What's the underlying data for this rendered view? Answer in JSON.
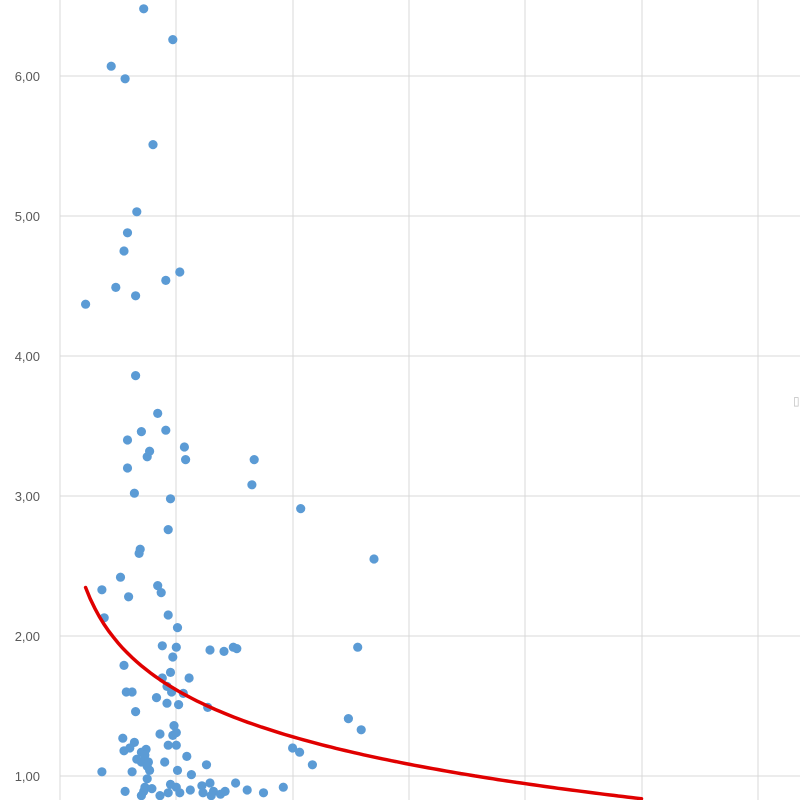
{
  "chart_data": {
    "type": "scatter",
    "title": "",
    "xlabel": "",
    "ylabel": "",
    "xlim": [
      0,
      6.3
    ],
    "ylim": [
      0.85,
      6.58
    ],
    "yticks": [
      1.0,
      2.0,
      3.0,
      4.0,
      5.0,
      6.0
    ],
    "ytick_labels": [
      "1,00",
      "2,00",
      "3,00",
      "4,00",
      "5,00",
      "6,00"
    ],
    "xticks": [
      0.5,
      1.5,
      2.5,
      3.5,
      4.5,
      5.5
    ],
    "grid": true,
    "point_color": "#5b9bd5",
    "trendline_color": "#e00000",
    "trendline": {
      "type": "logarithmic",
      "a": 1.615,
      "b": -0.483,
      "x_range": [
        0.22,
        5.0
      ]
    },
    "series": [
      {
        "points": [
          [
            0.72,
            6.48
          ],
          [
            0.97,
            6.26
          ],
          [
            0.44,
            6.07
          ],
          [
            0.56,
            5.98
          ],
          [
            0.8,
            5.51
          ],
          [
            0.66,
            5.03
          ],
          [
            0.58,
            4.88
          ],
          [
            0.55,
            4.75
          ],
          [
            1.03,
            4.6
          ],
          [
            0.48,
            4.49
          ],
          [
            0.65,
            4.43
          ],
          [
            0.91,
            4.54
          ],
          [
            0.22,
            4.37
          ],
          [
            0.65,
            3.86
          ],
          [
            0.7,
            3.46
          ],
          [
            0.84,
            3.59
          ],
          [
            0.91,
            3.47
          ],
          [
            0.58,
            3.4
          ],
          [
            0.75,
            3.28
          ],
          [
            0.77,
            3.32
          ],
          [
            1.07,
            3.35
          ],
          [
            0.58,
            3.2
          ],
          [
            1.08,
            3.26
          ],
          [
            1.67,
            3.26
          ],
          [
            1.65,
            3.08
          ],
          [
            0.64,
            3.02
          ],
          [
            0.95,
            2.98
          ],
          [
            2.07,
            2.91
          ],
          [
            0.93,
            2.76
          ],
          [
            2.7,
            2.55
          ],
          [
            0.69,
            2.62
          ],
          [
            0.68,
            2.59
          ],
          [
            0.52,
            2.42
          ],
          [
            0.36,
            2.33
          ],
          [
            0.84,
            2.36
          ],
          [
            0.87,
            2.31
          ],
          [
            0.59,
            2.28
          ],
          [
            0.93,
            2.15
          ],
          [
            0.38,
            2.13
          ],
          [
            1.01,
            2.06
          ],
          [
            0.88,
            1.93
          ],
          [
            1.0,
            1.92
          ],
          [
            1.29,
            1.9
          ],
          [
            1.49,
            1.92
          ],
          [
            1.52,
            1.91
          ],
          [
            1.41,
            1.89
          ],
          [
            2.56,
            1.92
          ],
          [
            0.97,
            1.85
          ],
          [
            0.55,
            1.79
          ],
          [
            0.95,
            1.74
          ],
          [
            0.88,
            1.7
          ],
          [
            1.11,
            1.7
          ],
          [
            0.57,
            1.6
          ],
          [
            0.62,
            1.6
          ],
          [
            0.92,
            1.64
          ],
          [
            0.96,
            1.6
          ],
          [
            1.06,
            1.59
          ],
          [
            0.83,
            1.56
          ],
          [
            0.92,
            1.52
          ],
          [
            1.02,
            1.51
          ],
          [
            1.27,
            1.49
          ],
          [
            0.65,
            1.46
          ],
          [
            0.98,
            1.36
          ],
          [
            0.97,
            1.29
          ],
          [
            1.0,
            1.31
          ],
          [
            0.86,
            1.3
          ],
          [
            0.54,
            1.27
          ],
          [
            0.64,
            1.24
          ],
          [
            0.6,
            1.2
          ],
          [
            0.55,
            1.18
          ],
          [
            0.74,
            1.19
          ],
          [
            0.93,
            1.22
          ],
          [
            1.0,
            1.22
          ],
          [
            0.7,
            1.17
          ],
          [
            0.73,
            1.15
          ],
          [
            2.0,
            1.2
          ],
          [
            2.06,
            1.17
          ],
          [
            2.48,
            1.41
          ],
          [
            2.59,
            1.33
          ],
          [
            0.66,
            1.12
          ],
          [
            0.7,
            1.1
          ],
          [
            0.76,
            1.1
          ],
          [
            0.9,
            1.1
          ],
          [
            1.09,
            1.14
          ],
          [
            1.26,
            1.08
          ],
          [
            0.75,
            1.07
          ],
          [
            0.77,
            1.04
          ],
          [
            0.36,
            1.03
          ],
          [
            0.62,
            1.03
          ],
          [
            1.01,
            1.04
          ],
          [
            1.13,
            1.01
          ],
          [
            2.17,
            1.08
          ],
          [
            0.75,
            0.98
          ],
          [
            1.0,
            0.92
          ],
          [
            1.22,
            0.93
          ],
          [
            1.29,
            0.95
          ],
          [
            1.51,
            0.95
          ],
          [
            0.95,
            0.94
          ],
          [
            0.56,
            0.89
          ],
          [
            0.72,
            0.89
          ],
          [
            0.73,
            0.92
          ],
          [
            0.79,
            0.91
          ],
          [
            0.93,
            0.88
          ],
          [
            1.03,
            0.88
          ],
          [
            1.12,
            0.9
          ],
          [
            1.23,
            0.88
          ],
          [
            1.32,
            0.89
          ],
          [
            1.42,
            0.89
          ],
          [
            1.61,
            0.9
          ],
          [
            1.75,
            0.88
          ],
          [
            1.92,
            0.92
          ],
          [
            0.7,
            0.86
          ],
          [
            0.86,
            0.86
          ],
          [
            1.3,
            0.86
          ],
          [
            1.38,
            0.87
          ]
        ]
      }
    ]
  }
}
